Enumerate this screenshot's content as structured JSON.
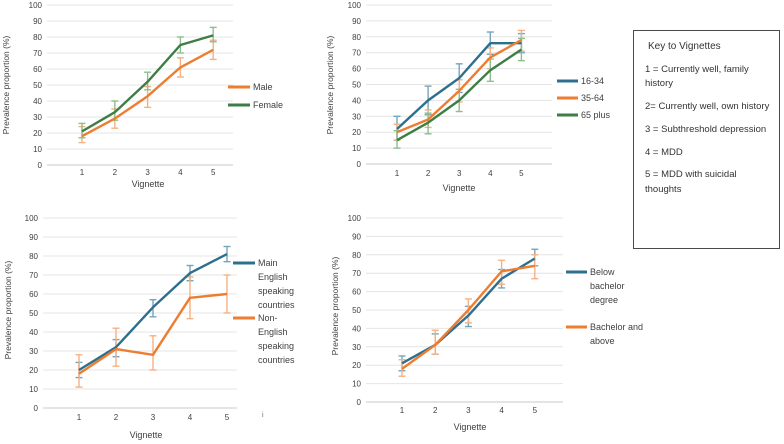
{
  "palette": {
    "orange": "#ED7D31",
    "green": "#3E7E46",
    "blue": "#2E6F8E",
    "orange_light": "#F4B183",
    "green_light": "#8CBF8C",
    "blue_light": "#76A5BB",
    "grid": "#E4E4E4",
    "axis": "#C8C8C8",
    "text": "#404040"
  },
  "key_box": {
    "title": "Key to Vignettes",
    "items": [
      "1 = Currently well, family history",
      "2= Currently well, own history",
      "3 = Subthreshold depression",
      "4 = MDD",
      "5 = MDD with suicidal thoughts"
    ]
  },
  "stray_mark": "i",
  "chart_data": [
    {
      "id": "sex",
      "type": "line",
      "title": "",
      "xlabel": "Vignette",
      "ylabel": "Prevalence proportion (%)",
      "categories": [
        "1",
        "2",
        "3",
        "4",
        "5"
      ],
      "ylim": [
        0,
        100
      ],
      "ytick_step": 10,
      "grid": true,
      "legend_position": "right",
      "series": [
        {
          "name": "Male",
          "color_key": "orange",
          "values": [
            18,
            29,
            43,
            61,
            72
          ],
          "err_low": [
            14,
            23,
            36,
            55,
            66
          ],
          "err_high": [
            24,
            35,
            49,
            67,
            78
          ]
        },
        {
          "name": "Female",
          "color_key": "green",
          "values": [
            21,
            33,
            52,
            75,
            81
          ],
          "err_low": [
            17,
            28,
            47,
            70,
            77
          ],
          "err_high": [
            26,
            40,
            58,
            80,
            86
          ]
        }
      ]
    },
    {
      "id": "age",
      "type": "line",
      "title": "",
      "xlabel": "Vignette",
      "ylabel": "Prevalence proportion (%)",
      "categories": [
        "1",
        "2",
        "3",
        "4",
        "5"
      ],
      "ylim": [
        0,
        100
      ],
      "ytick_step": 10,
      "grid": true,
      "legend_position": "right",
      "series": [
        {
          "name": "16-34",
          "color_key": "blue",
          "values": [
            22,
            40,
            54,
            76,
            76
          ],
          "err_low": [
            15,
            31,
            45,
            69,
            70
          ],
          "err_high": [
            30,
            49,
            63,
            83,
            82
          ]
        },
        {
          "name": "35-64",
          "color_key": "orange",
          "values": [
            20,
            28,
            46,
            67,
            78
          ],
          "err_low": [
            15,
            23,
            39,
            60,
            71
          ],
          "err_high": [
            25,
            34,
            53,
            73,
            84
          ]
        },
        {
          "name": "65 plus",
          "color_key": "green",
          "values": [
            15,
            26,
            40,
            59,
            72
          ],
          "err_low": [
            10,
            19,
            33,
            52,
            65
          ],
          "err_high": [
            21,
            32,
            47,
            66,
            79
          ]
        }
      ]
    },
    {
      "id": "country",
      "type": "line",
      "title": "",
      "xlabel": "Vignette",
      "ylabel": "Prevalence proportion (%)",
      "categories": [
        "1",
        "2",
        "3",
        "4",
        "5"
      ],
      "ylim": [
        0,
        100
      ],
      "ytick_step": 10,
      "grid": true,
      "legend_position": "right",
      "series": [
        {
          "name": "Main English speaking countries",
          "color_key": "blue",
          "values": [
            20,
            32,
            53,
            71,
            81
          ],
          "err_low": [
            16,
            27,
            48,
            67,
            77
          ],
          "err_high": [
            24,
            36,
            57,
            75,
            85
          ]
        },
        {
          "name": "Non-English speaking countries",
          "color_key": "orange",
          "values": [
            18,
            31,
            28,
            58,
            60
          ],
          "err_low": [
            11,
            22,
            20,
            47,
            50
          ],
          "err_high": [
            28,
            42,
            38,
            69,
            70
          ]
        }
      ]
    },
    {
      "id": "education",
      "type": "line",
      "title": "",
      "xlabel": "Vignette",
      "ylabel": "Prevalence proportion (%)",
      "categories": [
        "1",
        "2",
        "3",
        "4",
        "5"
      ],
      "ylim": [
        0,
        100
      ],
      "ytick_step": 10,
      "grid": true,
      "legend_position": "right",
      "series": [
        {
          "name": "Below bachelor degree",
          "color_key": "blue",
          "values": [
            21,
            31,
            47,
            67,
            78
          ],
          "err_low": [
            17,
            26,
            41,
            62,
            74
          ],
          "err_high": [
            25,
            37,
            52,
            72,
            83
          ]
        },
        {
          "name": "Bachelor and above",
          "color_key": "orange",
          "values": [
            18,
            31,
            50,
            71,
            74
          ],
          "err_low": [
            14,
            26,
            43,
            64,
            67
          ],
          "err_high": [
            23,
            39,
            56,
            77,
            80
          ]
        }
      ]
    }
  ]
}
